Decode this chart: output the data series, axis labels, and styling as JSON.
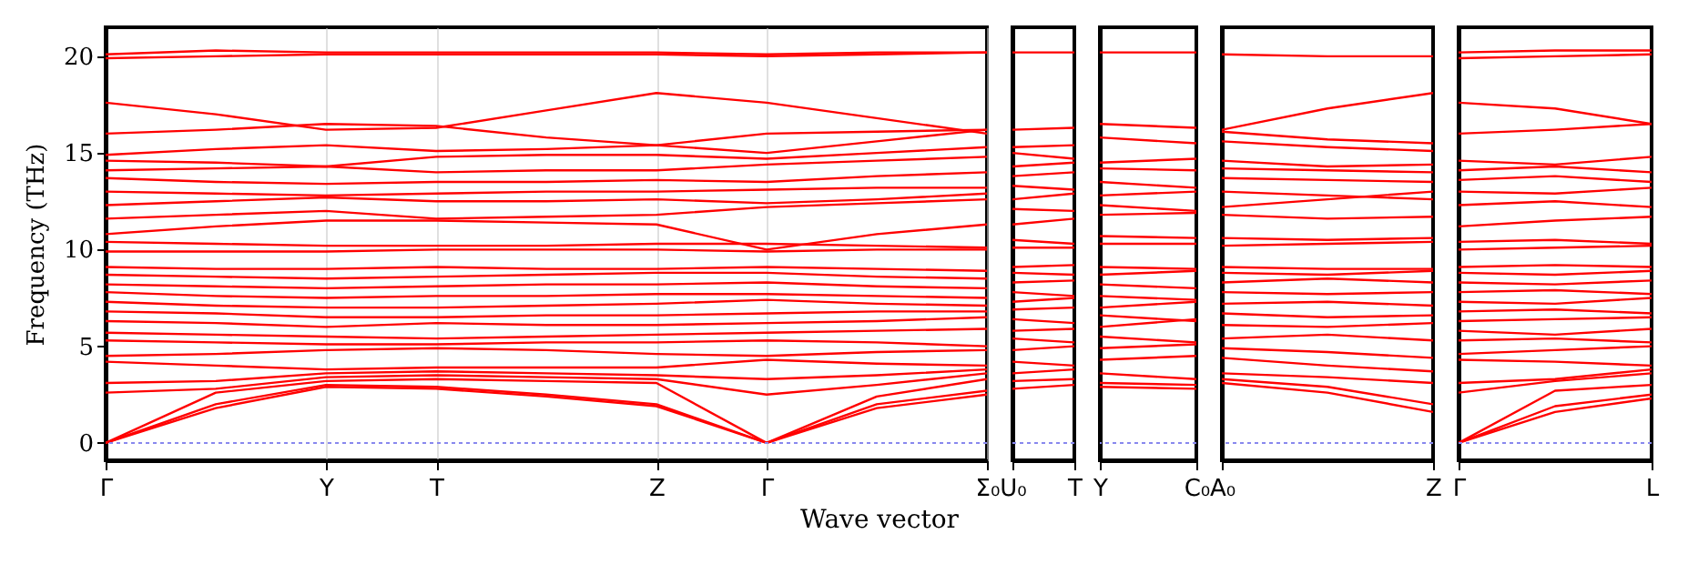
{
  "chart_data": [
    {
      "type": "line",
      "xlabel": "Wave vector",
      "ylabel": "Frequency (THz)",
      "categories": [
        "Γ",
        null,
        "Y",
        "T",
        null,
        "Z",
        "Γ",
        null,
        "Σ₀"
      ],
      "ylim": [
        -0.9,
        21.5
      ],
      "yticks": [
        0,
        5,
        10,
        15,
        20
      ],
      "grid": "x",
      "line_style": "solid",
      "ref_lines": [
        {
          "axis": "y",
          "value": 0,
          "color": "#8888ee",
          "line_style": "dotted"
        }
      ],
      "series": [
        {
          "color": "#ff0000",
          "values": [
            0,
            1.8,
            2.9,
            2.8,
            2.4,
            1.9,
            0,
            1.8,
            2.5
          ]
        },
        {
          "color": "#ff0000",
          "values": [
            0,
            2.0,
            3.0,
            2.9,
            2.5,
            2.0,
            0,
            2.0,
            2.7
          ]
        },
        {
          "color": "#ff0000",
          "values": [
            0,
            2.6,
            3.2,
            3.3,
            3.2,
            3.1,
            0,
            2.4,
            3.3
          ]
        },
        {
          "color": "#ff0000",
          "values": [
            2.6,
            2.8,
            3.4,
            3.5,
            3.4,
            3.3,
            2.5,
            3.0,
            3.6
          ]
        },
        {
          "color": "#ff0000",
          "values": [
            3.1,
            3.2,
            3.6,
            3.7,
            3.6,
            3.5,
            3.3,
            3.5,
            3.8
          ]
        },
        {
          "color": "#ff0000",
          "values": [
            4.2,
            4.0,
            3.8,
            3.9,
            3.9,
            3.9,
            4.3,
            4.1,
            4.0
          ]
        },
        {
          "color": "#ff0000",
          "values": [
            4.5,
            4.6,
            4.8,
            4.9,
            4.8,
            4.6,
            4.5,
            4.7,
            4.8
          ]
        },
        {
          "color": "#ff0000",
          "values": [
            5.3,
            5.2,
            5.1,
            5.1,
            5.2,
            5.2,
            5.3,
            5.2,
            5.0
          ]
        },
        {
          "color": "#ff0000",
          "values": [
            5.7,
            5.6,
            5.5,
            5.4,
            5.5,
            5.6,
            5.7,
            5.8,
            5.9
          ]
        },
        {
          "color": "#ff0000",
          "values": [
            6.3,
            6.2,
            6.0,
            6.2,
            6.1,
            6.1,
            6.2,
            6.3,
            6.5
          ]
        },
        {
          "color": "#ff0000",
          "values": [
            6.8,
            6.7,
            6.5,
            6.5,
            6.6,
            6.6,
            6.7,
            6.8,
            6.8
          ]
        },
        {
          "color": "#ff0000",
          "values": [
            7.3,
            7.1,
            7.0,
            7.0,
            7.1,
            7.2,
            7.4,
            7.2,
            7.1
          ]
        },
        {
          "color": "#ff0000",
          "values": [
            7.8,
            7.6,
            7.5,
            7.6,
            7.6,
            7.7,
            7.7,
            7.6,
            7.5
          ]
        },
        {
          "color": "#ff0000",
          "values": [
            8.2,
            8.1,
            8.0,
            8.1,
            8.2,
            8.2,
            8.3,
            8.1,
            8.0
          ]
        },
        {
          "color": "#ff0000",
          "values": [
            8.7,
            8.6,
            8.5,
            8.6,
            8.7,
            8.8,
            8.8,
            8.6,
            8.5
          ]
        },
        {
          "color": "#ff0000",
          "values": [
            9.1,
            9.0,
            9.0,
            9.1,
            9.0,
            9.0,
            9.1,
            9.0,
            8.9
          ]
        },
        {
          "color": "#ff0000",
          "values": [
            9.9,
            9.9,
            9.9,
            10.0,
            10.0,
            10.0,
            9.9,
            10.0,
            10.0
          ]
        },
        {
          "color": "#ff0000",
          "values": [
            10.4,
            10.3,
            10.2,
            10.2,
            10.2,
            10.3,
            10.3,
            10.2,
            10.1
          ]
        },
        {
          "color": "#ff0000",
          "values": [
            10.8,
            11.2,
            11.5,
            11.5,
            11.4,
            11.3,
            10.0,
            10.8,
            11.3
          ]
        },
        {
          "color": "#ff0000",
          "values": [
            11.6,
            11.8,
            12.0,
            11.6,
            11.7,
            11.8,
            12.2,
            12.4,
            12.6
          ]
        },
        {
          "color": "#ff0000",
          "values": [
            12.3,
            12.5,
            12.7,
            12.5,
            12.5,
            12.6,
            12.4,
            12.6,
            12.9
          ]
        },
        {
          "color": "#ff0000",
          "values": [
            13.0,
            12.9,
            12.8,
            12.9,
            13.0,
            13.0,
            13.1,
            13.2,
            13.2
          ]
        },
        {
          "color": "#ff0000",
          "values": [
            13.7,
            13.5,
            13.4,
            13.5,
            13.5,
            13.6,
            13.5,
            13.8,
            14.0
          ]
        },
        {
          "color": "#ff0000",
          "values": [
            14.1,
            14.2,
            14.3,
            14.0,
            14.1,
            14.1,
            14.4,
            14.6,
            14.8
          ]
        },
        {
          "color": "#ff0000",
          "values": [
            14.6,
            14.5,
            14.3,
            14.8,
            14.9,
            14.9,
            14.7,
            15.0,
            15.3
          ]
        },
        {
          "color": "#ff0000",
          "values": [
            14.9,
            15.2,
            15.4,
            15.1,
            15.2,
            15.4,
            15.0,
            15.6,
            16.2
          ]
        },
        {
          "color": "#ff0000",
          "values": [
            16.0,
            16.2,
            16.5,
            16.4,
            15.8,
            15.4,
            16.0,
            16.1,
            16.2
          ]
        },
        {
          "color": "#ff0000",
          "values": [
            17.6,
            17.0,
            16.2,
            16.3,
            17.2,
            18.1,
            17.6,
            16.8,
            16.0
          ]
        },
        {
          "color": "#ff0000",
          "values": [
            19.9,
            20.0,
            20.1,
            20.1,
            20.1,
            20.1,
            20.0,
            20.1,
            20.2
          ]
        },
        {
          "color": "#ff0000",
          "values": [
            20.1,
            20.3,
            20.2,
            20.2,
            20.2,
            20.2,
            20.1,
            20.2,
            20.2
          ]
        }
      ]
    },
    {
      "type": "line",
      "categories": [
        "U₀",
        "T"
      ],
      "ylim": [
        -0.9,
        21.5
      ],
      "yticks": [
        0,
        5,
        10,
        15,
        20
      ],
      "tick_labels": "x",
      "line_style": "solid",
      "ref_lines": [
        {
          "axis": "y",
          "value": 0,
          "color": "#8888ee",
          "line_style": "dotted"
        }
      ],
      "series": [
        {
          "color": "#ff0000",
          "values": [
            2.8,
            3.0
          ]
        },
        {
          "color": "#ff0000",
          "values": [
            3.2,
            3.3
          ]
        },
        {
          "color": "#ff0000",
          "values": [
            3.6,
            3.8
          ]
        },
        {
          "color": "#ff0000",
          "values": [
            4.2,
            4.0
          ]
        },
        {
          "color": "#ff0000",
          "values": [
            4.8,
            5.0
          ]
        },
        {
          "color": "#ff0000",
          "values": [
            5.4,
            5.2
          ]
        },
        {
          "color": "#ff0000",
          "values": [
            5.8,
            5.9
          ]
        },
        {
          "color": "#ff0000",
          "values": [
            6.4,
            6.2
          ]
        },
        {
          "color": "#ff0000",
          "values": [
            6.9,
            7.0
          ]
        },
        {
          "color": "#ff0000",
          "values": [
            7.3,
            7.5
          ]
        },
        {
          "color": "#ff0000",
          "values": [
            7.8,
            7.6
          ]
        },
        {
          "color": "#ff0000",
          "values": [
            8.3,
            8.4
          ]
        },
        {
          "color": "#ff0000",
          "values": [
            8.8,
            8.7
          ]
        },
        {
          "color": "#ff0000",
          "values": [
            9.1,
            9.2
          ]
        },
        {
          "color": "#ff0000",
          "values": [
            10.1,
            10.1
          ]
        },
        {
          "color": "#ff0000",
          "values": [
            10.5,
            10.3
          ]
        },
        {
          "color": "#ff0000",
          "values": [
            11.3,
            11.6
          ]
        },
        {
          "color": "#ff0000",
          "values": [
            12.1,
            12.0
          ]
        },
        {
          "color": "#ff0000",
          "values": [
            12.6,
            12.9
          ]
        },
        {
          "color": "#ff0000",
          "values": [
            13.3,
            13.1
          ]
        },
        {
          "color": "#ff0000",
          "values": [
            13.8,
            14.0
          ]
        },
        {
          "color": "#ff0000",
          "values": [
            14.3,
            14.5
          ]
        },
        {
          "color": "#ff0000",
          "values": [
            15.0,
            14.7
          ]
        },
        {
          "color": "#ff0000",
          "values": [
            15.3,
            15.4
          ]
        },
        {
          "color": "#ff0000",
          "values": [
            16.2,
            16.3
          ]
        },
        {
          "color": "#ff0000",
          "values": [
            20.2,
            20.2
          ]
        }
      ]
    },
    {
      "type": "line",
      "categories": [
        "Y",
        "C₀"
      ],
      "ylim": [
        -0.9,
        21.5
      ],
      "yticks": [
        0,
        5,
        10,
        15,
        20
      ],
      "tick_labels": "x",
      "line_style": "solid",
      "ref_lines": [
        {
          "axis": "y",
          "value": 0,
          "color": "#8888ee",
          "line_style": "dotted"
        }
      ],
      "series": [
        {
          "color": "#ff0000",
          "values": [
            2.9,
            2.8
          ]
        },
        {
          "color": "#ff0000",
          "values": [
            3.1,
            3.0
          ]
        },
        {
          "color": "#ff0000",
          "values": [
            3.6,
            3.3
          ]
        },
        {
          "color": "#ff0000",
          "values": [
            4.3,
            4.5
          ]
        },
        {
          "color": "#ff0000",
          "values": [
            4.9,
            5.1
          ]
        },
        {
          "color": "#ff0000",
          "values": [
            5.5,
            5.2
          ]
        },
        {
          "color": "#ff0000",
          "values": [
            6.0,
            6.4
          ]
        },
        {
          "color": "#ff0000",
          "values": [
            6.6,
            6.3
          ]
        },
        {
          "color": "#ff0000",
          "values": [
            7.0,
            7.3
          ]
        },
        {
          "color": "#ff0000",
          "values": [
            7.6,
            7.4
          ]
        },
        {
          "color": "#ff0000",
          "values": [
            8.2,
            8.0
          ]
        },
        {
          "color": "#ff0000",
          "values": [
            8.7,
            8.9
          ]
        },
        {
          "color": "#ff0000",
          "values": [
            9.1,
            9.0
          ]
        },
        {
          "color": "#ff0000",
          "values": [
            10.3,
            10.3
          ]
        },
        {
          "color": "#ff0000",
          "values": [
            10.7,
            10.6
          ]
        },
        {
          "color": "#ff0000",
          "values": [
            11.8,
            11.9
          ]
        },
        {
          "color": "#ff0000",
          "values": [
            12.3,
            12.0
          ]
        },
        {
          "color": "#ff0000",
          "values": [
            12.8,
            13.0
          ]
        },
        {
          "color": "#ff0000",
          "values": [
            13.5,
            13.2
          ]
        },
        {
          "color": "#ff0000",
          "values": [
            14.2,
            14.1
          ]
        },
        {
          "color": "#ff0000",
          "values": [
            14.5,
            14.7
          ]
        },
        {
          "color": "#ff0000",
          "values": [
            15.8,
            15.5
          ]
        },
        {
          "color": "#ff0000",
          "values": [
            16.5,
            16.3
          ]
        },
        {
          "color": "#ff0000",
          "values": [
            20.2,
            20.2
          ]
        }
      ]
    },
    {
      "type": "line",
      "categories": [
        "A₀",
        null,
        "Z"
      ],
      "ylim": [
        -0.9,
        21.5
      ],
      "yticks": [
        0,
        5,
        10,
        15,
        20
      ],
      "tick_labels": "x",
      "line_style": "solid",
      "ref_lines": [
        {
          "axis": "y",
          "value": 0,
          "color": "#8888ee",
          "line_style": "dotted"
        }
      ],
      "series": [
        {
          "color": "#ff0000",
          "values": [
            3.1,
            2.6,
            1.6
          ]
        },
        {
          "color": "#ff0000",
          "values": [
            3.3,
            2.9,
            2.0
          ]
        },
        {
          "color": "#ff0000",
          "values": [
            3.6,
            3.4,
            3.1
          ]
        },
        {
          "color": "#ff0000",
          "values": [
            4.4,
            4.0,
            3.7
          ]
        },
        {
          "color": "#ff0000",
          "values": [
            4.9,
            4.7,
            4.4
          ]
        },
        {
          "color": "#ff0000",
          "values": [
            5.4,
            5.6,
            5.3
          ]
        },
        {
          "color": "#ff0000",
          "values": [
            6.1,
            6.0,
            6.2
          ]
        },
        {
          "color": "#ff0000",
          "values": [
            6.7,
            6.5,
            6.6
          ]
        },
        {
          "color": "#ff0000",
          "values": [
            7.2,
            7.3,
            7.1
          ]
        },
        {
          "color": "#ff0000",
          "values": [
            7.8,
            7.7,
            7.8
          ]
        },
        {
          "color": "#ff0000",
          "values": [
            8.3,
            8.5,
            8.3
          ]
        },
        {
          "color": "#ff0000",
          "values": [
            8.8,
            8.7,
            8.9
          ]
        },
        {
          "color": "#ff0000",
          "values": [
            9.1,
            9.0,
            9.0
          ]
        },
        {
          "color": "#ff0000",
          "values": [
            10.2,
            10.3,
            10.4
          ]
        },
        {
          "color": "#ff0000",
          "values": [
            10.6,
            10.5,
            10.6
          ]
        },
        {
          "color": "#ff0000",
          "values": [
            11.8,
            11.6,
            11.7
          ]
        },
        {
          "color": "#ff0000",
          "values": [
            12.2,
            12.6,
            13.0
          ]
        },
        {
          "color": "#ff0000",
          "values": [
            13.0,
            12.8,
            12.6
          ]
        },
        {
          "color": "#ff0000",
          "values": [
            13.7,
            13.6,
            13.5
          ]
        },
        {
          "color": "#ff0000",
          "values": [
            14.2,
            14.1,
            14.0
          ]
        },
        {
          "color": "#ff0000",
          "values": [
            14.6,
            14.3,
            14.4
          ]
        },
        {
          "color": "#ff0000",
          "values": [
            15.6,
            15.3,
            15.1
          ]
        },
        {
          "color": "#ff0000",
          "values": [
            16.1,
            15.7,
            15.5
          ]
        },
        {
          "color": "#ff0000",
          "values": [
            16.2,
            17.3,
            18.1
          ]
        },
        {
          "color": "#ff0000",
          "values": [
            20.1,
            20.0,
            20.0
          ]
        }
      ]
    },
    {
      "type": "line",
      "categories": [
        "Γ",
        null,
        "L"
      ],
      "ylim": [
        -0.9,
        21.5
      ],
      "yticks": [
        0,
        5,
        10,
        15,
        20
      ],
      "tick_labels": "x",
      "line_style": "solid",
      "ref_lines": [
        {
          "axis": "y",
          "value": 0,
          "color": "#8888ee",
          "line_style": "dotted"
        }
      ],
      "series": [
        {
          "color": "#ff0000",
          "values": [
            0,
            1.6,
            2.3
          ]
        },
        {
          "color": "#ff0000",
          "values": [
            0,
            1.9,
            2.5
          ]
        },
        {
          "color": "#ff0000",
          "values": [
            0,
            2.7,
            3.0
          ]
        },
        {
          "color": "#ff0000",
          "values": [
            2.6,
            3.2,
            3.6
          ]
        },
        {
          "color": "#ff0000",
          "values": [
            3.1,
            3.3,
            3.8
          ]
        },
        {
          "color": "#ff0000",
          "values": [
            4.3,
            4.2,
            4.0
          ]
        },
        {
          "color": "#ff0000",
          "values": [
            4.6,
            4.8,
            5.0
          ]
        },
        {
          "color": "#ff0000",
          "values": [
            5.3,
            5.4,
            5.2
          ]
        },
        {
          "color": "#ff0000",
          "values": [
            5.8,
            5.6,
            5.9
          ]
        },
        {
          "color": "#ff0000",
          "values": [
            6.3,
            6.4,
            6.5
          ]
        },
        {
          "color": "#ff0000",
          "values": [
            6.8,
            6.9,
            6.7
          ]
        },
        {
          "color": "#ff0000",
          "values": [
            7.3,
            7.2,
            7.5
          ]
        },
        {
          "color": "#ff0000",
          "values": [
            7.8,
            7.9,
            7.7
          ]
        },
        {
          "color": "#ff0000",
          "values": [
            8.3,
            8.2,
            8.4
          ]
        },
        {
          "color": "#ff0000",
          "values": [
            8.8,
            8.7,
            8.9
          ]
        },
        {
          "color": "#ff0000",
          "values": [
            9.1,
            9.2,
            9.1
          ]
        },
        {
          "color": "#ff0000",
          "values": [
            10.0,
            10.1,
            10.2
          ]
        },
        {
          "color": "#ff0000",
          "values": [
            10.4,
            10.5,
            10.3
          ]
        },
        {
          "color": "#ff0000",
          "values": [
            11.2,
            11.5,
            11.7
          ]
        },
        {
          "color": "#ff0000",
          "values": [
            12.3,
            12.5,
            12.2
          ]
        },
        {
          "color": "#ff0000",
          "values": [
            13.0,
            12.9,
            13.2
          ]
        },
        {
          "color": "#ff0000",
          "values": [
            13.6,
            13.8,
            13.5
          ]
        },
        {
          "color": "#ff0000",
          "values": [
            14.1,
            14.3,
            14.0
          ]
        },
        {
          "color": "#ff0000",
          "values": [
            14.6,
            14.4,
            14.8
          ]
        },
        {
          "color": "#ff0000",
          "values": [
            16.0,
            16.2,
            16.5
          ]
        },
        {
          "color": "#ff0000",
          "values": [
            17.6,
            17.3,
            16.5
          ]
        },
        {
          "color": "#ff0000",
          "values": [
            19.9,
            20.0,
            20.1
          ]
        },
        {
          "color": "#ff0000",
          "values": [
            20.2,
            20.3,
            20.3
          ]
        }
      ]
    }
  ]
}
